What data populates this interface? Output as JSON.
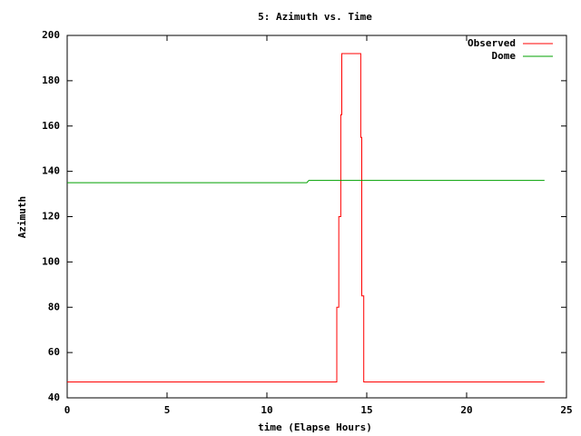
{
  "chart_data": {
    "type": "line",
    "title": "5: Azimuth vs. Time",
    "x_label": "time (Elapse Hours)",
    "y_label": "Azimuth",
    "xlim": [
      0,
      25
    ],
    "xticks": [
      0,
      5,
      10,
      15,
      20,
      25
    ],
    "ylim": [
      40,
      200
    ],
    "yticks": [
      40,
      60,
      80,
      100,
      120,
      140,
      160,
      180,
      200
    ],
    "legend": "top-right",
    "series": [
      {
        "name": "Observed",
        "color": "#ff0000",
        "x": [
          0,
          13.5,
          13.5,
          13.6,
          13.6,
          13.7,
          13.7,
          13.75,
          13.75,
          14.7,
          14.7,
          14.75,
          14.75,
          14.85,
          14.85,
          23.9
        ],
        "values": [
          47,
          47,
          80,
          80,
          120,
          120,
          165,
          165,
          192,
          192,
          155,
          155,
          85,
          85,
          47,
          47
        ]
      },
      {
        "name": "Dome",
        "color": "#00a000",
        "x": [
          0,
          12.0,
          12.1,
          23.9
        ],
        "values": [
          135,
          135,
          136,
          136
        ]
      }
    ]
  }
}
